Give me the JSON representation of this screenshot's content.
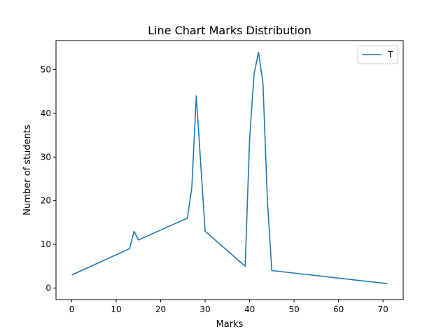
{
  "chart_data": {
    "type": "line",
    "title": "Line Chart Marks Distribution",
    "xlabel": "Marks",
    "ylabel": "Number of students",
    "xlim": [
      -3.55,
      74.55
    ],
    "ylim": [
      -2.65,
      56.65
    ],
    "xticks": [
      0,
      10,
      20,
      30,
      40,
      50,
      60,
      70
    ],
    "yticks": [
      0,
      10,
      20,
      30,
      40,
      50
    ],
    "grid": false,
    "legend_position": "top-right",
    "series": [
      {
        "name": "T",
        "color": "#1f77b4",
        "x": [
          0,
          13,
          14,
          15,
          26,
          27,
          28,
          30,
          39,
          40,
          41,
          42,
          43,
          44,
          45,
          71
        ],
        "y": [
          3,
          9,
          13,
          11,
          16,
          23,
          44,
          13,
          5,
          34,
          49,
          54,
          47,
          20,
          4,
          1
        ]
      }
    ]
  }
}
